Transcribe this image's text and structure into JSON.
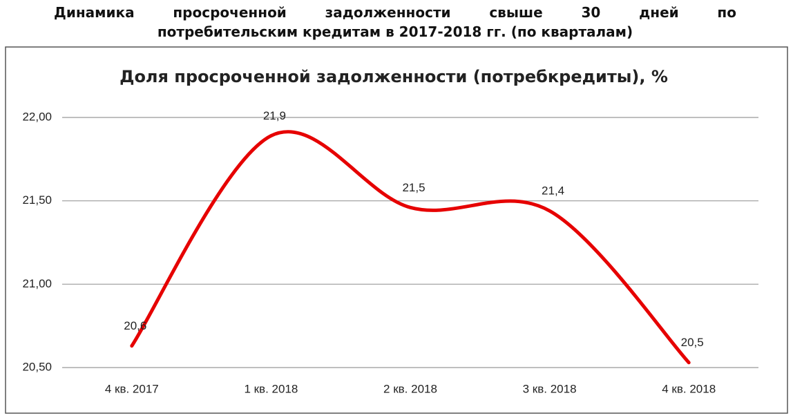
{
  "chart_data": {
    "type": "line",
    "suptitle": [
      "Динамика просроченной задолженности свыше 30 дней по",
      "потребительским кредитам в 2017-2018 гг. (по кварталам)"
    ],
    "title": "Доля просроченной задолженности (потребкредиты), %",
    "categories": [
      "4 кв. 2017",
      "1 кв. 2018",
      "2 кв. 2018",
      "3 кв. 2018",
      "4 кв. 2018"
    ],
    "values": [
      20.63,
      21.89,
      21.46,
      21.44,
      20.53
    ],
    "value_labels": [
      "20,6",
      "21,9",
      "21,5",
      "21,4",
      "20,5"
    ],
    "color": "#e60000",
    "ylim": [
      20.5,
      22
    ],
    "yticks": [
      {
        "value": 20.5,
        "label": "20,50"
      },
      {
        "value": 21,
        "label": "21,00"
      },
      {
        "value": 21.5,
        "label": "21,50"
      },
      {
        "value": 22,
        "label": "22,00"
      }
    ],
    "grid": true
  }
}
